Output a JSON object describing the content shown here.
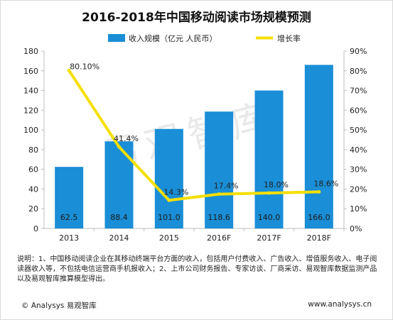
{
  "title": "2016-2018年中国移动阅读市场规模预测",
  "watermark": "易观智库",
  "colors": {
    "bar": "#1a8ed6",
    "line": "#f5df00",
    "axis": "#bdbdbd",
    "text": "#222222"
  },
  "chart_data": {
    "type": "bar",
    "title": "2016-2018年中国移动阅读市场规模预测",
    "categories": [
      "2013",
      "2014",
      "2015",
      "2016F",
      "2017F",
      "2018F"
    ],
    "series": [
      {
        "name": "收入规模（亿元 人民币）",
        "type": "bar",
        "axis": "left",
        "values": [
          62.5,
          88.4,
          101.0,
          118.6,
          140.0,
          166.0
        ],
        "labels": [
          "62.5",
          "88.4",
          "101.0",
          "118.6",
          "140.0",
          "166.0"
        ]
      },
      {
        "name": "增长率",
        "type": "line",
        "axis": "right",
        "values": [
          80.1,
          41.4,
          14.3,
          17.4,
          18.0,
          18.6
        ],
        "labels": [
          "80.10%",
          "41.4%",
          "14.3%",
          "17.4%",
          "18.0%",
          "18.6%"
        ]
      }
    ],
    "y_left": {
      "min": 0,
      "max": 180,
      "step": 20,
      "ticks": [
        "0",
        "20",
        "40",
        "60",
        "80",
        "100",
        "120",
        "140",
        "160",
        "180"
      ]
    },
    "y_right": {
      "min": 0,
      "max": 90,
      "step": 10,
      "ticks": [
        "0%",
        "10%",
        "20%",
        "30%",
        "40%",
        "50%",
        "60%",
        "70%",
        "80%",
        "90%"
      ]
    },
    "legend_position": "top",
    "grid": false
  },
  "notes": "说明：1、中国移动阅读企业在其移动终端平台方面的收入，包括用户付费收入、广告收入、增值服务收入、电子阅读器收入等，不包括电信运营商手机报收入；2、上市公司财务报告、专家访谈、厂商采访、易观智库数据监测产品以及易观智库推算模型得出。",
  "footer": {
    "left": "© Analysys 易观智库",
    "right": "www.analysys.cn"
  }
}
